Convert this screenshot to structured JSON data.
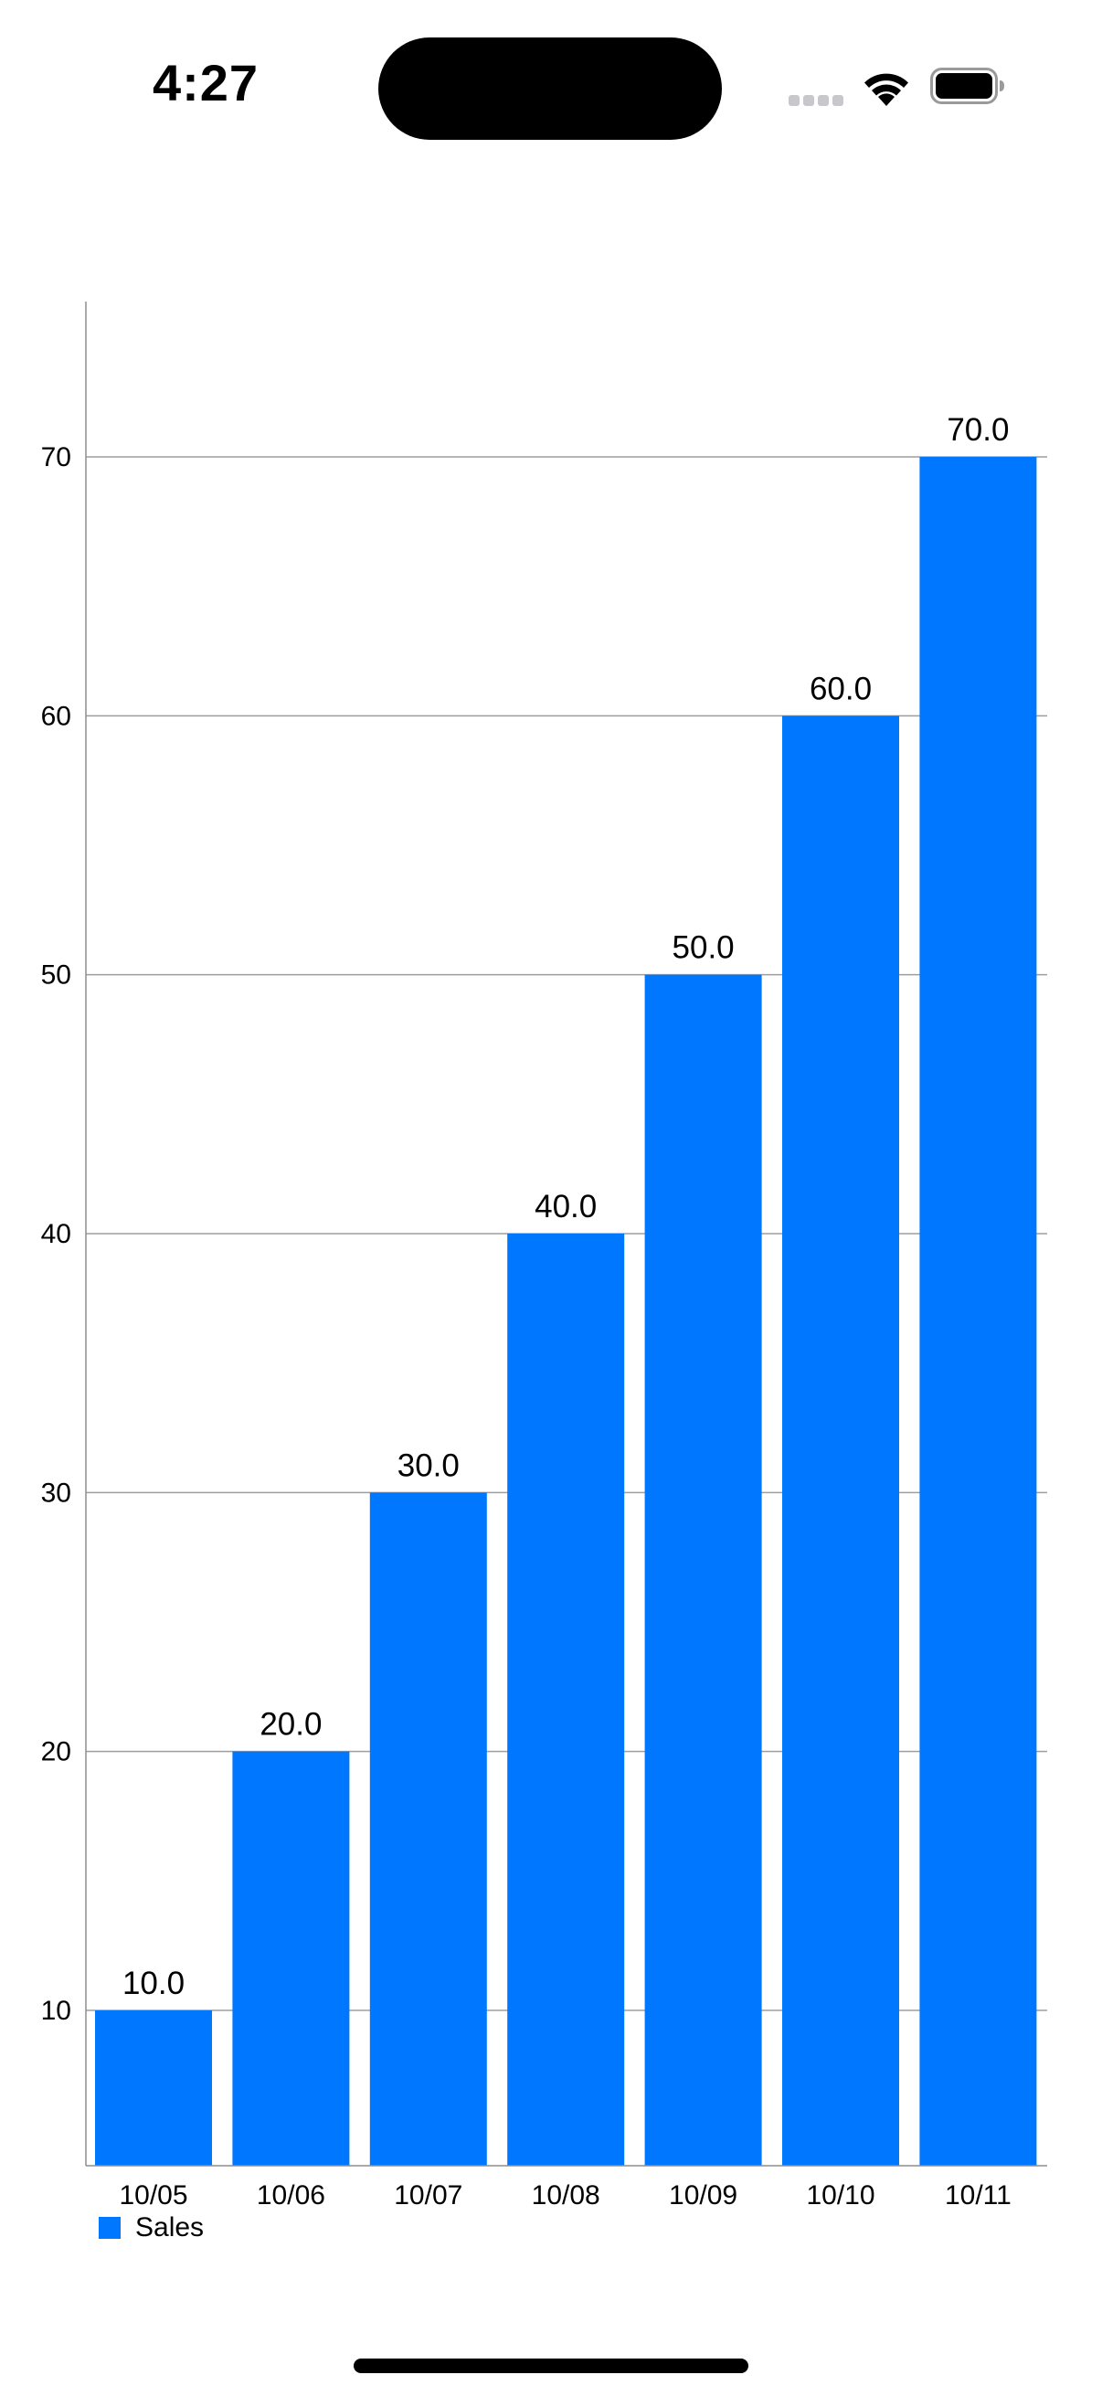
{
  "status_bar": {
    "time": "4:27",
    "icons": [
      "cellular-signal-icon",
      "wifi-icon",
      "battery-icon"
    ]
  },
  "chart_data": {
    "type": "bar",
    "categories": [
      "10/05",
      "10/06",
      "10/07",
      "10/08",
      "10/09",
      "10/10",
      "10/11"
    ],
    "series": [
      {
        "name": "Sales",
        "values": [
          10.0,
          20.0,
          30.0,
          40.0,
          50.0,
          60.0,
          70.0
        ],
        "value_labels": [
          "10.0",
          "20.0",
          "30.0",
          "40.0",
          "50.0",
          "60.0",
          "70.0"
        ],
        "color": "#0077FF"
      }
    ],
    "title": "",
    "xlabel": "",
    "ylabel": "",
    "ylim": [
      4,
      76
    ],
    "yticks": [
      10,
      20,
      30,
      40,
      50,
      60,
      70
    ],
    "grid": true,
    "legend": "bottom-left"
  },
  "colors": {
    "bar": "#0077FF",
    "gridline": "#9e9e9e",
    "axis": "#8e8e8e",
    "background": "#FFFFFF"
  }
}
